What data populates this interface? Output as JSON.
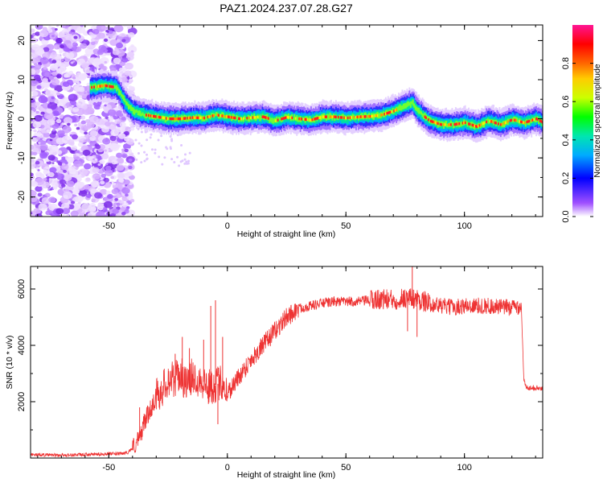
{
  "chart_data": [
    {
      "type": "heatmap",
      "title": "PAZ1.2024.237.07.28.G27",
      "xlabel": "Height of straight line (km)",
      "ylabel": "Frequency (Hz)",
      "xlim": [
        -83,
        133
      ],
      "ylim": [
        -25,
        24
      ],
      "xticks": [
        -50,
        0,
        50,
        100
      ],
      "yticks": [
        20,
        10,
        0,
        -10,
        -20
      ],
      "colorbar": {
        "label": "Normalized spectral amplitude",
        "range": [
          0,
          1
        ],
        "ticks": [
          "0.0",
          "0.2",
          "0.4",
          "0.6",
          "0.8"
        ],
        "tick_values": [
          0.0,
          0.2,
          0.4,
          0.6,
          0.8
        ]
      },
      "colors": {
        "ridge_peak": "#ff2020",
        "noise": "#8a2be2"
      },
      "ridge": {
        "x": [
          -58,
          -52,
          -47,
          -43,
          -40,
          -35,
          -30,
          -25,
          -20,
          -15,
          -10,
          -5,
          0,
          5,
          10,
          15,
          20,
          25,
          30,
          35,
          40,
          45,
          50,
          55,
          60,
          65,
          70,
          75,
          78,
          80,
          85,
          90,
          95,
          100,
          105,
          110,
          115,
          120,
          125,
          130,
          133
        ],
        "y": [
          8,
          8.5,
          8,
          4,
          2,
          1,
          0.5,
          0,
          0,
          0.3,
          0.2,
          1,
          0.5,
          0,
          0.3,
          0.5,
          -0.5,
          0.4,
          0,
          -0.3,
          0.5,
          0.5,
          0.2,
          0.5,
          0.6,
          1,
          2,
          3.5,
          4,
          2,
          -0.5,
          -1.5,
          -1.5,
          -1,
          -2,
          -0.5,
          -1.5,
          -0.2,
          -1,
          0,
          -1
        ]
      }
    },
    {
      "type": "line",
      "xlabel": "Height of straight line (km)",
      "ylabel": "SNR (10 * v/v)",
      "xlim": [
        -83,
        133
      ],
      "ylim": [
        0,
        6800
      ],
      "xticks": [
        -50,
        0,
        50,
        100
      ],
      "yticks": [
        2000,
        4000,
        6000
      ],
      "colors": {
        "line": "#ee3333"
      },
      "series": [
        {
          "x": [
            -83,
            -70,
            -60,
            -50,
            -45,
            -42,
            -40,
            -37,
            -35,
            -32,
            -30,
            -27,
            -25,
            -22,
            -20,
            -17,
            -15,
            -12,
            -10,
            -8,
            -5,
            -2,
            0,
            5,
            10,
            15,
            20,
            25,
            30,
            35,
            40,
            45,
            50,
            55,
            60,
            65,
            70,
            75,
            80,
            85,
            90,
            95,
            100,
            105,
            110,
            115,
            120,
            124,
            125,
            126,
            130,
            133
          ],
          "y": [
            120,
            100,
            120,
            150,
            150,
            200,
            350,
            700,
            1300,
            1800,
            2200,
            2500,
            2800,
            2800,
            3000,
            2600,
            2900,
            2800,
            2700,
            2500,
            2600,
            2700,
            2300,
            2900,
            3500,
            4000,
            4500,
            5000,
            5300,
            5400,
            5500,
            5550,
            5550,
            5550,
            5600,
            5650,
            5600,
            5700,
            5650,
            5500,
            5400,
            5350,
            5400,
            5400,
            5400,
            5350,
            5350,
            5400,
            2800,
            2500,
            2500,
            2450
          ]
        }
      ],
      "spikes": [
        {
          "x": -37,
          "y": 1800
        },
        {
          "x": -22,
          "y": 3700
        },
        {
          "x": -19,
          "y": 4300
        },
        {
          "x": -16,
          "y": 3900
        },
        {
          "x": -10,
          "y": 4200
        },
        {
          "x": -7,
          "y": 5400
        },
        {
          "x": -5,
          "y": 5600
        },
        {
          "x": -4,
          "y": 1200
        },
        {
          "x": -2,
          "y": 4300
        },
        {
          "x": 78,
          "y": 6800
        },
        {
          "x": 80,
          "y": 4300
        },
        {
          "x": 76,
          "y": 4500
        }
      ]
    }
  ]
}
